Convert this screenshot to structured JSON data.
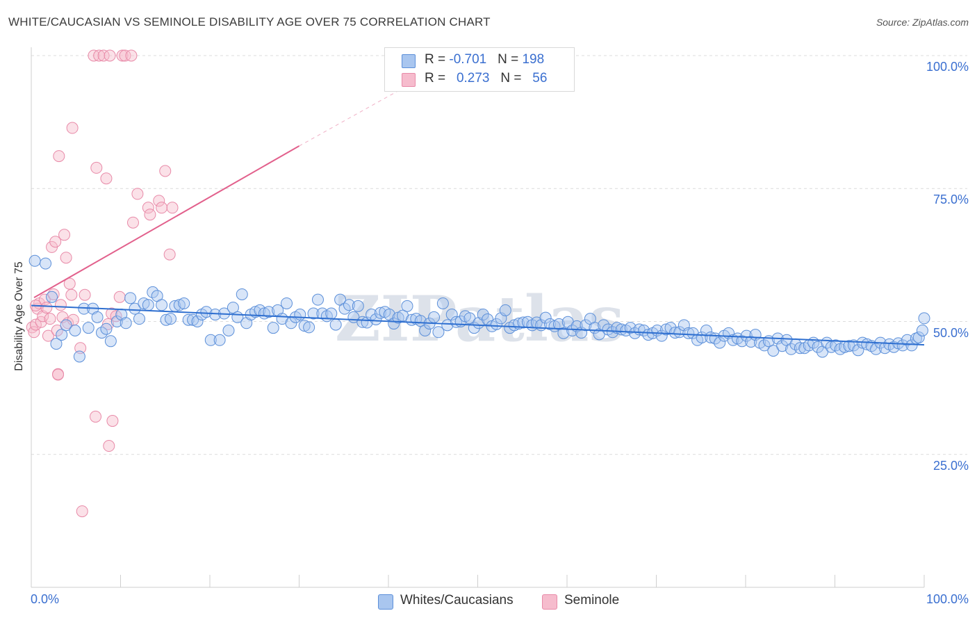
{
  "header": {
    "title": "WHITE/CAUCASIAN VS SEMINOLE DISABILITY AGE OVER 75 CORRELATION CHART",
    "source": "Source: ZipAtlas.com"
  },
  "watermark": "ZIPatlas",
  "legend": {
    "rows": [
      {
        "r_label": "R = ",
        "r_value": "-0.701",
        "n_label": "N = ",
        "n_value": "198"
      },
      {
        "r_label": "R = ",
        "r_value": "0.273",
        "n_label": "N = ",
        "n_value": "56"
      }
    ]
  },
  "bottom_legend": {
    "white": "Whites/Caucasians",
    "seminole": "Seminole"
  },
  "colors": {
    "blue_fill": "#a9c6ef",
    "blue_stroke": "#5b8fd9",
    "blue_line": "#2e6fd0",
    "pink_fill": "#f6bccd",
    "pink_stroke": "#e88aa8",
    "pink_line": "#e2608c",
    "tick_text": "#3a6fd0"
  },
  "chart_data": {
    "type": "scatter",
    "title": "WHITE/CAUCASIAN VS SEMINOLE DISABILITY AGE OVER 75 CORRELATION CHART",
    "xlabel": "",
    "ylabel": "Disability Age Over 75",
    "xlim": [
      0,
      100
    ],
    "ylim": [
      0,
      100
    ],
    "x_ticks": [
      "0.0%",
      "100.0%"
    ],
    "y_ticks": [
      {
        "value": 100,
        "label": "100.0%"
      },
      {
        "value": 75,
        "label": "75.0%"
      },
      {
        "value": 50,
        "label": "50.0%"
      },
      {
        "value": 25,
        "label": "25.0%"
      }
    ],
    "series": [
      {
        "name": "Whites/Caucasians",
        "r": -0.701,
        "n": 198,
        "trend": {
          "x0": 0,
          "y0": 53.0,
          "x1": 100,
          "y1": 45.6
        },
        "points": [
          [
            0.4,
            61.4
          ],
          [
            1.6,
            60.9
          ],
          [
            2.3,
            54.6
          ],
          [
            2.8,
            45.8
          ],
          [
            3.4,
            47.5
          ],
          [
            3.9,
            49.3
          ],
          [
            4.9,
            48.3
          ],
          [
            5.4,
            43.4
          ],
          [
            5.9,
            52.4
          ],
          [
            6.4,
            48.8
          ],
          [
            6.9,
            52.4
          ],
          [
            7.4,
            50.8
          ],
          [
            7.9,
            47.9
          ],
          [
            8.4,
            48.6
          ],
          [
            8.9,
            46.3
          ],
          [
            9.6,
            50.0
          ],
          [
            10.1,
            51.3
          ],
          [
            10.6,
            49.7
          ],
          [
            11.1,
            54.4
          ],
          [
            11.6,
            52.4
          ],
          [
            12.1,
            50.5
          ],
          [
            12.6,
            53.4
          ],
          [
            13.1,
            53.1
          ],
          [
            13.6,
            55.5
          ],
          [
            14.1,
            54.8
          ],
          [
            14.6,
            53.1
          ],
          [
            15.1,
            50.3
          ],
          [
            15.6,
            50.5
          ],
          [
            16.1,
            52.9
          ],
          [
            16.6,
            53.1
          ],
          [
            17.1,
            53.4
          ],
          [
            17.6,
            50.3
          ],
          [
            18.1,
            50.3
          ],
          [
            18.6,
            50.0
          ],
          [
            19.1,
            51.3
          ],
          [
            19.6,
            51.8
          ],
          [
            20.1,
            46.5
          ],
          [
            20.6,
            51.3
          ],
          [
            21.1,
            46.5
          ],
          [
            21.6,
            51.5
          ],
          [
            22.1,
            48.3
          ],
          [
            22.6,
            52.6
          ],
          [
            23.1,
            50.8
          ],
          [
            23.6,
            55.1
          ],
          [
            24.1,
            49.7
          ],
          [
            24.6,
            51.3
          ],
          [
            25.1,
            51.8
          ],
          [
            25.6,
            52.1
          ],
          [
            26.1,
            51.5
          ],
          [
            26.6,
            51.8
          ],
          [
            27.1,
            48.8
          ],
          [
            27.6,
            52.1
          ],
          [
            28.1,
            50.5
          ],
          [
            28.6,
            53.4
          ],
          [
            29.1,
            49.7
          ],
          [
            29.6,
            50.8
          ],
          [
            30.1,
            51.3
          ],
          [
            30.6,
            49.2
          ],
          [
            31.1,
            48.9
          ],
          [
            31.6,
            51.5
          ],
          [
            32.1,
            54.1
          ],
          [
            32.6,
            51.5
          ],
          [
            33.1,
            51.0
          ],
          [
            33.6,
            51.5
          ],
          [
            34.1,
            49.4
          ],
          [
            34.6,
            54.1
          ],
          [
            35.1,
            52.4
          ],
          [
            35.6,
            53.1
          ],
          [
            36.1,
            50.8
          ],
          [
            36.6,
            52.9
          ],
          [
            37.1,
            49.9
          ],
          [
            37.6,
            49.8
          ],
          [
            38.1,
            51.3
          ],
          [
            38.6,
            50.4
          ],
          [
            39.1,
            51.6
          ],
          [
            39.6,
            51.8
          ],
          [
            40.1,
            51.3
          ],
          [
            40.6,
            49.6
          ],
          [
            41.1,
            50.7
          ],
          [
            41.6,
            51.1
          ],
          [
            42.1,
            52.9
          ],
          [
            42.6,
            50.3
          ],
          [
            43.1,
            50.5
          ],
          [
            43.6,
            50.1
          ],
          [
            44.1,
            48.3
          ],
          [
            44.6,
            49.6
          ],
          [
            45.1,
            50.8
          ],
          [
            45.6,
            48.0
          ],
          [
            46.1,
            53.4
          ],
          [
            46.6,
            49.3
          ],
          [
            47.1,
            51.3
          ],
          [
            47.6,
            49.9
          ],
          [
            48.1,
            50.0
          ],
          [
            48.6,
            51.0
          ],
          [
            49.1,
            50.6
          ],
          [
            49.6,
            48.8
          ],
          [
            50.1,
            49.7
          ],
          [
            50.6,
            51.3
          ],
          [
            51.1,
            50.4
          ],
          [
            51.6,
            49.1
          ],
          [
            52.1,
            49.5
          ],
          [
            52.6,
            50.6
          ],
          [
            53.1,
            52.1
          ],
          [
            53.6,
            48.8
          ],
          [
            54.1,
            49.3
          ],
          [
            54.6,
            49.6
          ],
          [
            55.1,
            49.8
          ],
          [
            55.6,
            49.9
          ],
          [
            56.1,
            49.3
          ],
          [
            56.6,
            49.8
          ],
          [
            57.1,
            49.3
          ],
          [
            57.6,
            50.7
          ],
          [
            58.1,
            49.5
          ],
          [
            58.6,
            49.1
          ],
          [
            59.1,
            49.5
          ],
          [
            59.6,
            47.8
          ],
          [
            60.1,
            49.9
          ],
          [
            60.6,
            48.3
          ],
          [
            61.1,
            49.1
          ],
          [
            61.6,
            47.9
          ],
          [
            62.1,
            49.3
          ],
          [
            62.6,
            50.5
          ],
          [
            63.1,
            48.8
          ],
          [
            63.6,
            47.6
          ],
          [
            64.1,
            49.3
          ],
          [
            64.6,
            48.5
          ],
          [
            65.1,
            48.0
          ],
          [
            65.6,
            48.8
          ],
          [
            66.1,
            48.5
          ],
          [
            66.6,
            48.3
          ],
          [
            67.1,
            48.8
          ],
          [
            67.6,
            47.8
          ],
          [
            68.1,
            48.5
          ],
          [
            68.6,
            48.3
          ],
          [
            69.1,
            47.5
          ],
          [
            69.6,
            47.8
          ],
          [
            70.1,
            48.3
          ],
          [
            70.6,
            47.3
          ],
          [
            71.1,
            48.5
          ],
          [
            71.6,
            48.8
          ],
          [
            72.1,
            47.9
          ],
          [
            72.6,
            48.0
          ],
          [
            73.1,
            49.3
          ],
          [
            73.6,
            47.8
          ],
          [
            74.1,
            47.8
          ],
          [
            74.6,
            46.5
          ],
          [
            75.1,
            47.0
          ],
          [
            75.6,
            48.3
          ],
          [
            76.1,
            47.0
          ],
          [
            76.6,
            46.8
          ],
          [
            77.1,
            46.0
          ],
          [
            77.6,
            47.3
          ],
          [
            78.1,
            47.8
          ],
          [
            78.6,
            46.5
          ],
          [
            79.1,
            46.8
          ],
          [
            79.6,
            46.3
          ],
          [
            80.1,
            47.3
          ],
          [
            80.6,
            46.2
          ],
          [
            81.1,
            47.5
          ],
          [
            81.6,
            46.0
          ],
          [
            82.1,
            45.5
          ],
          [
            82.6,
            46.3
          ],
          [
            83.1,
            44.5
          ],
          [
            83.6,
            46.8
          ],
          [
            84.1,
            45.4
          ],
          [
            84.6,
            46.5
          ],
          [
            85.1,
            44.8
          ],
          [
            85.6,
            45.7
          ],
          [
            86.1,
            45.0
          ],
          [
            86.6,
            45.0
          ],
          [
            87.1,
            45.5
          ],
          [
            87.6,
            46.0
          ],
          [
            88.1,
            45.2
          ],
          [
            88.6,
            44.3
          ],
          [
            89.1,
            46.0
          ],
          [
            89.6,
            45.2
          ],
          [
            90.1,
            45.5
          ],
          [
            90.6,
            44.8
          ],
          [
            91.1,
            45.2
          ],
          [
            91.6,
            45.4
          ],
          [
            92.1,
            45.5
          ],
          [
            92.6,
            44.6
          ],
          [
            93.1,
            46.0
          ],
          [
            93.6,
            45.7
          ],
          [
            94.1,
            45.4
          ],
          [
            94.6,
            44.8
          ],
          [
            95.1,
            46.0
          ],
          [
            95.6,
            45.0
          ],
          [
            96.1,
            45.7
          ],
          [
            96.6,
            45.2
          ],
          [
            97.1,
            45.9
          ],
          [
            97.6,
            45.5
          ],
          [
            98.1,
            46.5
          ],
          [
            98.6,
            45.5
          ],
          [
            99.1,
            46.8
          ],
          [
            99.4,
            47.0
          ],
          [
            99.8,
            48.3
          ],
          [
            100.0,
            50.6
          ]
        ]
      },
      {
        "name": "Seminole",
        "r": 0.273,
        "n": 56,
        "trend": {
          "x0": 0,
          "y0": 54.5,
          "x1": 30,
          "y1": 83.0,
          "dashed_to": {
            "x": 45.5,
            "y": 97.5
          }
        },
        "points": [
          [
            0.1,
            48.9
          ],
          [
            0.3,
            48.0
          ],
          [
            0.5,
            49.4
          ],
          [
            0.7,
            52.4
          ],
          [
            0.9,
            53.4
          ],
          [
            1.1,
            49.9
          ],
          [
            1.3,
            51.0
          ],
          [
            1.5,
            54.1
          ],
          [
            1.7,
            52.6
          ],
          [
            1.9,
            47.3
          ],
          [
            2.1,
            50.5
          ],
          [
            2.3,
            64.0
          ],
          [
            2.5,
            55.1
          ],
          [
            2.7,
            65.0
          ],
          [
            2.9,
            48.3
          ],
          [
            3.1,
            81.1
          ],
          [
            3.3,
            53.1
          ],
          [
            3.5,
            50.8
          ],
          [
            3.7,
            66.3
          ],
          [
            3.9,
            62.0
          ],
          [
            4.1,
            49.7
          ],
          [
            4.3,
            57.1
          ],
          [
            4.5,
            55.0
          ],
          [
            4.7,
            50.3
          ],
          [
            3.0,
            40.1
          ],
          [
            5.5,
            45.0
          ],
          [
            5.7,
            14.3
          ],
          [
            6.0,
            55.0
          ],
          [
            4.6,
            86.4
          ],
          [
            7.0,
            100.0
          ],
          [
            7.6,
            100.0
          ],
          [
            8.1,
            100.0
          ],
          [
            8.8,
            100.0
          ],
          [
            10.2,
            100.0
          ],
          [
            10.5,
            100.0
          ],
          [
            11.2,
            100.0
          ],
          [
            7.3,
            78.9
          ],
          [
            8.4,
            76.9
          ],
          [
            8.6,
            49.5
          ],
          [
            9.0,
            51.5
          ],
          [
            9.5,
            51.0
          ],
          [
            9.9,
            54.6
          ],
          [
            7.2,
            32.1
          ],
          [
            9.1,
            31.3
          ],
          [
            8.7,
            26.6
          ],
          [
            11.4,
            68.6
          ],
          [
            11.9,
            74.0
          ],
          [
            13.1,
            71.4
          ],
          [
            13.3,
            70.1
          ],
          [
            14.3,
            72.7
          ],
          [
            14.6,
            71.4
          ],
          [
            15.0,
            78.3
          ],
          [
            15.8,
            71.4
          ],
          [
            15.5,
            62.6
          ],
          [
            3.0,
            40.0
          ],
          [
            0.5,
            53.0
          ]
        ]
      }
    ]
  }
}
